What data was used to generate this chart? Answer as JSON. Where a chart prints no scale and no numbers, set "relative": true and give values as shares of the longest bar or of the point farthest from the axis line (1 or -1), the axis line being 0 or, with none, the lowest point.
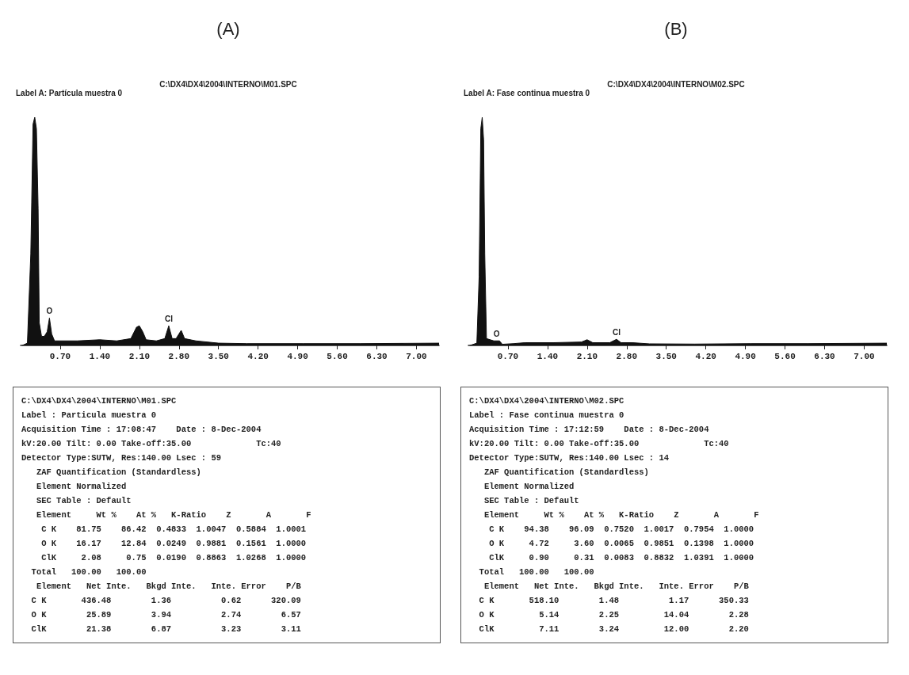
{
  "chart_data": [
    {
      "type": "area",
      "title": "(A)",
      "subtitle": "C:\\DX4\\DX4\\2004\\INTERNO\\M01.SPC",
      "color": "#111111",
      "relative": true,
      "marker": "none",
      "annotations": [
        "Label A: Partícula muestra 0",
        {
          "text": "O",
          "x": 0.51,
          "y": 0.12
        },
        {
          "text": "Cl",
          "x": 2.62,
          "y": 0.086
        }
      ],
      "xlim": [
        0,
        7.4
      ],
      "xticks": [
        {
          "value": 0.7,
          "label": "0.70"
        },
        {
          "value": 1.4,
          "label": "1.40"
        },
        {
          "value": 2.1,
          "label": "2.10"
        },
        {
          "value": 2.8,
          "label": "2.80"
        },
        {
          "value": 3.5,
          "label": "3.50"
        },
        {
          "value": 4.2,
          "label": "4.20"
        },
        {
          "value": 4.9,
          "label": "4.90"
        },
        {
          "value": 5.6,
          "label": "5.60"
        },
        {
          "value": 6.3,
          "label": "6.30"
        },
        {
          "value": 7,
          "label": "7.00"
        }
      ],
      "x": [
        0.03,
        0.12,
        0.18,
        0.22,
        0.25,
        0.28,
        0.31,
        0.33,
        0.37,
        0.42,
        0.47,
        0.51,
        0.55,
        0.6,
        0.7,
        1.0,
        1.4,
        1.7,
        1.95,
        2.05,
        2.1,
        2.16,
        2.22,
        2.4,
        2.55,
        2.62,
        2.68,
        2.75,
        2.84,
        2.9,
        3.1,
        3.5,
        4.0,
        5.0,
        6.0,
        7.4
      ],
      "values": [
        0,
        0.01,
        0.4,
        0.97,
        1,
        0.95,
        0.6,
        0.1,
        0.04,
        0.04,
        0.06,
        0.12,
        0.05,
        0.02,
        0.02,
        0.02,
        0.025,
        0.02,
        0.03,
        0.08,
        0.086,
        0.06,
        0.025,
        0.02,
        0.03,
        0.086,
        0.03,
        0.03,
        0.066,
        0.03,
        0.02,
        0.01,
        0.008,
        0.008,
        0.008,
        0.01
      ]
    },
    {
      "type": "area",
      "title": "(B)",
      "subtitle": "C:\\DX4\\DX4\\2004\\INTERNO\\M02.SPC",
      "color": "#111111",
      "relative": true,
      "marker": "none",
      "annotations": [
        "Label A: Fase continua muestra 0",
        {
          "text": "O",
          "x": 0.5,
          "y": 0.02
        },
        {
          "text": "Cl",
          "x": 2.62,
          "y": 0.027
        }
      ],
      "xlim": [
        0,
        7.4
      ],
      "xticks": [
        {
          "value": 0.7,
          "label": "0.70"
        },
        {
          "value": 1.4,
          "label": "1.40"
        },
        {
          "value": 2.1,
          "label": "2.10"
        },
        {
          "value": 2.8,
          "label": "2.80"
        },
        {
          "value": 3.5,
          "label": "3.50"
        },
        {
          "value": 4.2,
          "label": "4.20"
        },
        {
          "value": 4.9,
          "label": "4.90"
        },
        {
          "value": 5.6,
          "label": "5.60"
        },
        {
          "value": 6.3,
          "label": "6.30"
        },
        {
          "value": 7,
          "label": "7.00"
        }
      ],
      "x": [
        0.03,
        0.15,
        0.19,
        0.22,
        0.245,
        0.27,
        0.29,
        0.32,
        0.45,
        0.55,
        0.6,
        0.8,
        1.0,
        1.5,
        2.0,
        2.1,
        2.2,
        2.5,
        2.62,
        2.7,
        2.9,
        3.2,
        4.0,
        5.0,
        6.0,
        7.4
      ],
      "values": [
        0,
        0.01,
        0.3,
        0.95,
        1,
        0.9,
        0.4,
        0.03,
        0.02,
        0.02,
        0.005,
        0.008,
        0.012,
        0.012,
        0.015,
        0.025,
        0.012,
        0.012,
        0.027,
        0.012,
        0.012,
        0.007,
        0.006,
        0.008,
        0.008,
        0.01
      ]
    },
    {
      "type": "other",
      "annotations": [
        "C:\\DX4\\DX4\\2004\\INTERNO\\M01.SPC",
        "Label : Particula muestra 0",
        "Acquisition Time : 17:08:47    Date : 8-Dec-2004",
        "kV:20.00 Tilt: 0.00 Take-off:35.00             Tc:40",
        "Detector Type:SUTW, Res:140.00 Lsec : 59",
        "   ZAF Quantification (Standardless)",
        "   Element Normalized",
        "   SEC Table : Default",
        "   Element     Wt %    At %   K-Ratio    Z       A       F",
        "    C K    81.75    86.42  0.4833  1.0047  0.5884  1.0001",
        "    O K    16.17    12.84  0.0249  0.9881  0.1561  1.0000",
        "    ClK     2.08     0.75  0.0190  0.8863  1.0268  1.0000",
        "  Total   100.00   100.00",
        "   Element   Net Inte.   Bkgd Inte.   Inte. Error    P/B",
        "  C K       436.48        1.36          0.62      320.09",
        "  O K        25.89        3.94          2.74        6.57",
        "  ClK        21.38        6.87          3.23        3.11"
      ]
    },
    {
      "type": "other",
      "annotations": [
        "C:\\DX4\\DX4\\2004\\INTERNO\\M02.SPC",
        "Label : Fase continua muestra 0",
        "Acquisition Time : 17:12:59    Date : 8-Dec-2004",
        "kV:20.00 Tilt: 0.00 Take-off:35.00             Tc:40",
        "Detector Type:SUTW, Res:140.00 Lsec : 14",
        "   ZAF Quantification (Standardless)",
        "   Element Normalized",
        "   SEC Table : Default",
        "   Element     Wt %    At %   K-Ratio    Z       A       F",
        "    C K    94.38    96.09  0.7520  1.0017  0.7954  1.0000",
        "    O K     4.72     3.60  0.0065  0.9851  0.1398  1.0000",
        "    ClK     0.90     0.31  0.0083  0.8832  1.0391  1.0000",
        "  Total   100.00   100.00",
        "   Element   Net Inte.   Bkgd Inte.   Inte. Error    P/B",
        "  C K       518.10        1.48          1.17      350.33",
        "  O K         5.14        2.25         14.04        2.28",
        "  ClK         7.11        3.24         12.00        2.20"
      ]
    }
  ]
}
